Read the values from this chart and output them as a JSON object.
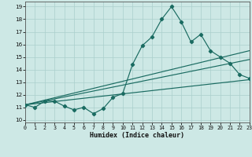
{
  "title": "",
  "xlabel": "Humidex (Indice chaleur)",
  "xlim": [
    0,
    23
  ],
  "ylim": [
    9.8,
    19.4
  ],
  "xticks": [
    0,
    1,
    2,
    3,
    4,
    5,
    6,
    7,
    8,
    9,
    10,
    11,
    12,
    13,
    14,
    15,
    16,
    17,
    18,
    19,
    20,
    21,
    22,
    23
  ],
  "yticks": [
    10,
    11,
    12,
    13,
    14,
    15,
    16,
    17,
    18,
    19
  ],
  "bg_color": "#cde8e5",
  "line_color": "#1a6b61",
  "series1_x": [
    0,
    1,
    2,
    3,
    4,
    5,
    6,
    7,
    8,
    9,
    10,
    11,
    12,
    13,
    14,
    15,
    16,
    17,
    18,
    19,
    20,
    21,
    22,
    23
  ],
  "series1_y": [
    11.2,
    11.0,
    11.5,
    11.5,
    11.1,
    10.8,
    11.0,
    10.5,
    10.9,
    11.8,
    12.1,
    14.4,
    15.9,
    16.6,
    18.0,
    19.0,
    17.8,
    16.2,
    16.8,
    15.5,
    15.0,
    14.5,
    13.6,
    13.3
  ],
  "line2": [
    [
      0,
      11.2
    ],
    [
      23,
      15.5
    ]
  ],
  "line3": [
    [
      0,
      11.2
    ],
    [
      23,
      14.8
    ]
  ],
  "line4": [
    [
      0,
      11.2
    ],
    [
      23,
      13.2
    ]
  ]
}
